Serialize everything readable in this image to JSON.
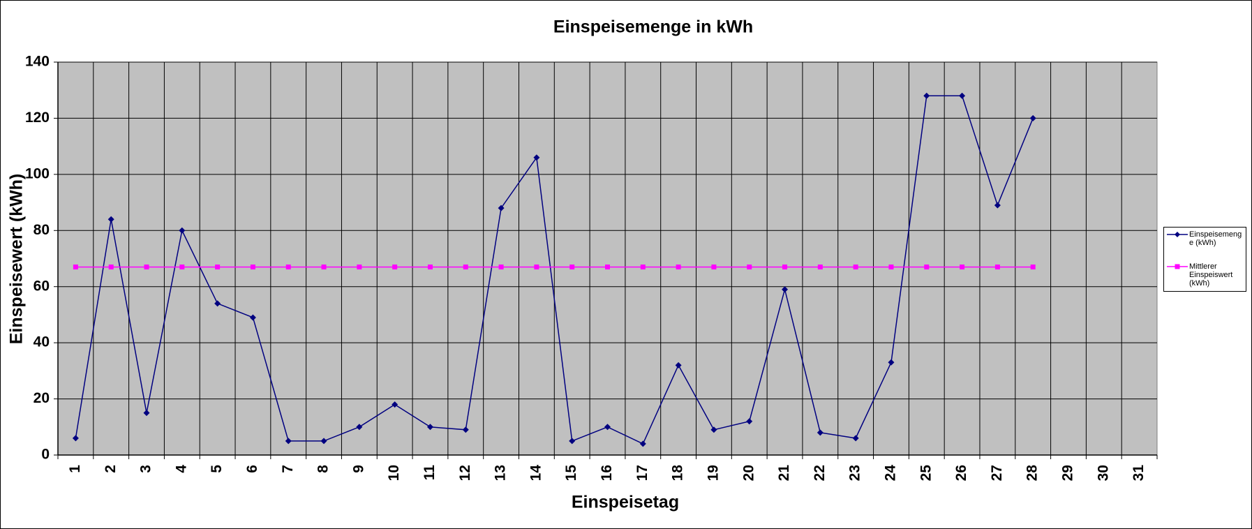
{
  "chart_data": {
    "type": "line",
    "title": "Einspeisemenge in kWh",
    "x_label": "Einspeisetag",
    "y_label": "Einspeisewert  (kWh)",
    "categories": [
      "1",
      "2",
      "3",
      "4",
      "5",
      "6",
      "7",
      "8",
      "9",
      "10",
      "11",
      "12",
      "13",
      "14",
      "15",
      "16",
      "17",
      "18",
      "19",
      "20",
      "21",
      "22",
      "23",
      "24",
      "25",
      "26",
      "27",
      "28",
      "29",
      "30",
      "31"
    ],
    "series": [
      {
        "name": "Einspeisemenge (kWh)",
        "color": "#000080",
        "marker": "diamond",
        "values": [
          6,
          84,
          15,
          80,
          54,
          49,
          5,
          5,
          10,
          18,
          10,
          9,
          88,
          106,
          5,
          10,
          4,
          32,
          9,
          12,
          59,
          8,
          6,
          33,
          128,
          128,
          89,
          120,
          null,
          null,
          null
        ]
      },
      {
        "name": "Mittlerer Einspeiswert (kWh)",
        "color": "#ff00ff",
        "marker": "square",
        "values": [
          67,
          67,
          67,
          67,
          67,
          67,
          67,
          67,
          67,
          67,
          67,
          67,
          67,
          67,
          67,
          67,
          67,
          67,
          67,
          67,
          67,
          67,
          67,
          67,
          67,
          67,
          67,
          67,
          null,
          null,
          null
        ]
      }
    ],
    "ylim": [
      0,
      140
    ],
    "yticks": [
      0,
      20,
      40,
      60,
      80,
      100,
      120,
      140
    ],
    "grid": true,
    "legend": "right"
  }
}
